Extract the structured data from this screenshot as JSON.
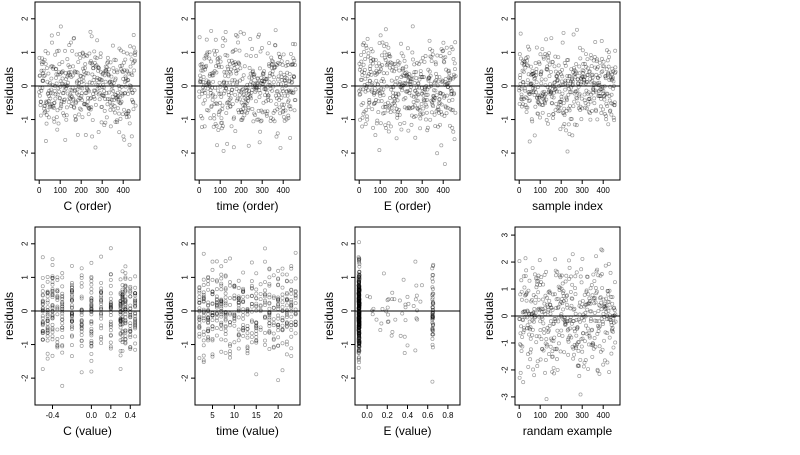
{
  "chart_data": [
    {
      "type": "scatter",
      "xlabel": "C (order)",
      "ylabel": "residuals",
      "xlim": [
        -20,
        480
      ],
      "ylim": [
        -2.8,
        2.5
      ],
      "xticks": [
        0,
        100,
        200,
        300,
        400
      ],
      "xtick_labels": [
        "0",
        "100",
        "200",
        "300",
        "400"
      ],
      "yticks": [
        -2,
        -1,
        0,
        1,
        2
      ],
      "ytick_labels": [
        "-2",
        "-1",
        "0",
        "1",
        "2"
      ],
      "hline": 0,
      "grid": false,
      "x_kind": "index",
      "n": 460,
      "seed": 11,
      "sd": 0.65
    },
    {
      "type": "scatter",
      "xlabel": "time (order)",
      "ylabel": "residuals",
      "xlim": [
        -20,
        480
      ],
      "ylim": [
        -2.8,
        2.5
      ],
      "xticks": [
        0,
        100,
        200,
        300,
        400
      ],
      "xtick_labels": [
        "0",
        "100",
        "200",
        "300",
        "400"
      ],
      "yticks": [
        -2,
        -1,
        0,
        1,
        2
      ],
      "ytick_labels": [
        "-2",
        "-1",
        "0",
        "1",
        "2"
      ],
      "hline": 0,
      "grid": false,
      "x_kind": "index",
      "n": 460,
      "seed": 22,
      "sd": 0.65
    },
    {
      "type": "scatter",
      "xlabel": "E (order)",
      "ylabel": "residuals",
      "xlim": [
        -20,
        480
      ],
      "ylim": [
        -2.8,
        2.5
      ],
      "xticks": [
        0,
        100,
        200,
        300,
        400
      ],
      "xtick_labels": [
        "0",
        "100",
        "200",
        "300",
        "400"
      ],
      "yticks": [
        -2,
        -1,
        0,
        1,
        2
      ],
      "ytick_labels": [
        "-2",
        "-1",
        "0",
        "1",
        "2"
      ],
      "hline": 0,
      "grid": false,
      "x_kind": "index",
      "n": 460,
      "seed": 33,
      "sd": 0.65
    },
    {
      "type": "scatter",
      "xlabel": "sample index",
      "ylabel": "residuals",
      "xlim": [
        -20,
        480
      ],
      "ylim": [
        -2.8,
        2.5
      ],
      "xticks": [
        0,
        100,
        200,
        300,
        400
      ],
      "xtick_labels": [
        "0",
        "100",
        "200",
        "300",
        "400"
      ],
      "yticks": [
        -2,
        -1,
        0,
        1,
        2
      ],
      "ytick_labels": [
        "-2",
        "-1",
        "0",
        "1",
        "2"
      ],
      "hline": 0,
      "grid": false,
      "x_kind": "index",
      "n": 460,
      "seed": 44,
      "sd": 0.65
    },
    {
      "type": "scatter",
      "xlabel": "C (value)",
      "ylabel": "residuals",
      "xlim": [
        -0.58,
        0.5
      ],
      "ylim": [
        -2.8,
        2.5
      ],
      "xticks": [
        -0.4,
        0,
        0.2,
        0.4
      ],
      "xtick_labels": [
        "-0.4",
        "0.0",
        "0.2",
        "0.4"
      ],
      "yticks": [
        -2,
        -1,
        0,
        1,
        2
      ],
      "ytick_labels": [
        "-2",
        "-1",
        "0",
        "1",
        "2"
      ],
      "hline": 0,
      "grid": false,
      "x_kind": "levels",
      "levels": [
        -0.5,
        -0.45,
        -0.4,
        -0.35,
        -0.3,
        -0.2,
        -0.1,
        0,
        0.1,
        0.2,
        0.3,
        0.32,
        0.35,
        0.4,
        0.45
      ],
      "n": 460,
      "seed": 55,
      "sd": 0.65
    },
    {
      "type": "scatter",
      "xlabel": "time (value)",
      "ylabel": "residuals",
      "xlim": [
        1,
        25
      ],
      "ylim": [
        -2.8,
        2.5
      ],
      "xticks": [
        5,
        10,
        15,
        20
      ],
      "xtick_labels": [
        "5",
        "10",
        "15",
        "20"
      ],
      "yticks": [
        -2,
        -1,
        0,
        1,
        2
      ],
      "ytick_labels": [
        "-2",
        "-1",
        "0",
        "1",
        "2"
      ],
      "hline": 0,
      "grid": false,
      "x_kind": "levels",
      "levels": [
        2,
        3,
        4,
        5,
        6,
        7,
        8,
        9,
        10,
        11,
        12,
        13,
        14,
        15,
        16,
        17,
        18,
        19,
        20,
        21,
        22,
        23,
        24
      ],
      "n": 460,
      "seed": 66,
      "sd": 0.65
    },
    {
      "type": "scatter",
      "xlabel": "E (value)",
      "ylabel": "residuals",
      "xlim": [
        -0.12,
        0.92
      ],
      "ylim": [
        -2.8,
        2.5
      ],
      "xticks": [
        0,
        0.2,
        0.4,
        0.6,
        0.8
      ],
      "xtick_labels": [
        "0.0",
        "0.2",
        "0.4",
        "0.6",
        "0.8"
      ],
      "yticks": [
        -2,
        -1,
        0,
        1,
        2
      ],
      "ytick_labels": [
        "-2",
        "-1",
        "0",
        "1",
        "2"
      ],
      "hline": 0,
      "grid": false,
      "x_kind": "clusters",
      "clusters": [
        {
          "x": -0.08,
          "share": 0.8
        },
        {
          "x": 0.65,
          "share": 0.1
        }
      ],
      "n": 460,
      "seed": 77,
      "sd": 0.65
    },
    {
      "type": "scatter",
      "xlabel": "randam example",
      "ylabel": "residuals",
      "xlim": [
        -20,
        480
      ],
      "ylim": [
        -3.3,
        3.3
      ],
      "xticks": [
        0,
        100,
        200,
        300,
        400
      ],
      "xtick_labels": [
        "0",
        "100",
        "200",
        "300",
        "400"
      ],
      "yticks": [
        -3,
        -2,
        -1,
        0,
        1,
        2,
        3
      ],
      "ytick_labels": [
        "-3",
        "-2",
        "-1",
        "0",
        "1",
        "2",
        "3"
      ],
      "hline": 0,
      "grid": false,
      "x_kind": "index",
      "n": 460,
      "seed": 88,
      "sd": 1.0
    }
  ]
}
